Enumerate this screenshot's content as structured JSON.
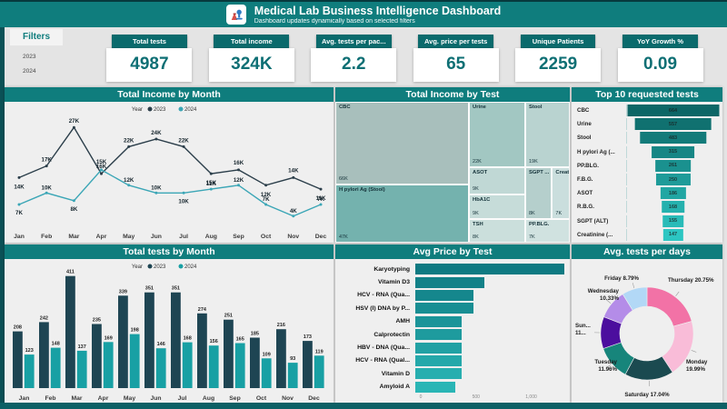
{
  "header": {
    "title": "Medical Lab Business Intelligence Dashboard",
    "subtitle": "Dashboard updates dynamically based on selected filters"
  },
  "filters": {
    "title": "Filters",
    "options": [
      "2023",
      "2024"
    ]
  },
  "kpis": [
    {
      "label": "Total tests",
      "value": "4987"
    },
    {
      "label": "Total income",
      "value": "324K"
    },
    {
      "label": "Avg. tests per pac...",
      "value": "2.2"
    },
    {
      "label": "Avg. price per tests",
      "value": "65"
    },
    {
      "label": "Unique Patients",
      "value": "2259"
    },
    {
      "label": "YoY Growth %",
      "value": "0.09"
    }
  ],
  "colors": {
    "teal_header": "#0F7D7D",
    "teal_dark": "#0A6A6C",
    "edge_dark": "#0B5156",
    "footer": "#0C6065",
    "kpi_value": "#0E6F74",
    "funnel_from": "#0C6666",
    "funnel_to": "#2CC6C2",
    "hbar_from": "#0F7A82",
    "hbar_to": "#2AB5B5"
  },
  "chart_data": [
    {
      "id": "income_by_month",
      "type": "line",
      "title": "Total Income by Month",
      "legend_label": "Year",
      "categories": [
        "Jan",
        "Feb",
        "Mar",
        "Apr",
        "May",
        "Jun",
        "Jul",
        "Aug",
        "Sep",
        "Oct",
        "Nov",
        "Dec"
      ],
      "unit": "K",
      "series": [
        {
          "name": "2023",
          "color": "#2B3E4A",
          "values": [
            14,
            17,
            27,
            15,
            22,
            24,
            22,
            15,
            16,
            12,
            14,
            11
          ]
        },
        {
          "name": "2024",
          "color": "#3BA6B6",
          "values": [
            7,
            10,
            8,
            16,
            12,
            10,
            10,
            11,
            12,
            7,
            4,
            7
          ]
        }
      ],
      "ylim": [
        3,
        28
      ]
    },
    {
      "id": "income_by_test",
      "type": "heatmap",
      "title": "Total Income by Test",
      "items": [
        {
          "name": "CBC",
          "value": "66K",
          "color": "#A8BFBC"
        },
        {
          "name": "H pylori Ag (Stool)",
          "value": "47K",
          "color": "#74B2AE"
        },
        {
          "name": "Urine",
          "value": "22K",
          "color": "#A2C7C2"
        },
        {
          "name": "Stool",
          "value": "19K",
          "color": "#B9D3D0"
        },
        {
          "name": "ASOT",
          "value": "9K",
          "color": "#C0D8D5"
        },
        {
          "name": "HbA1C",
          "value": "9K",
          "color": "#C6DCD9"
        },
        {
          "name": "TSH",
          "value": "8K",
          "color": "#CBDFDC"
        },
        {
          "name": "SGPT ...",
          "value": "8K",
          "color": "#B5CFCC"
        },
        {
          "name": "Creati...",
          "value": "7K",
          "color": "#CADEDD"
        },
        {
          "name": "PP.BLG.",
          "value": "7K",
          "color": "#D0E2E0"
        }
      ]
    },
    {
      "id": "top_requested_tests",
      "type": "bar",
      "title": "Top 10 requested tests",
      "categories": [
        "CBC",
        "Urine",
        "Stool",
        "H pylori Ag (...",
        "PP.BLG.",
        "F.B.G.",
        "ASOT",
        "R.B.G.",
        "SGPT (ALT)",
        "Creatinine (..."
      ],
      "values": [
        664,
        557,
        483,
        315,
        261,
        250,
        186,
        168,
        155,
        147
      ]
    },
    {
      "id": "tests_by_month",
      "type": "bar",
      "title": "Total tests by Month",
      "legend_label": "Year",
      "categories": [
        "Jan",
        "Feb",
        "Mar",
        "Apr",
        "May",
        "Jun",
        "Jul",
        "Aug",
        "Sep",
        "Oct",
        "Nov",
        "Dec"
      ],
      "series": [
        {
          "name": "2023",
          "color": "#1E4553",
          "values": [
            208,
            242,
            411,
            235,
            339,
            351,
            351,
            274,
            251,
            185,
            216,
            173
          ]
        },
        {
          "name": "2024",
          "color": "#18A0A4",
          "values": [
            123,
            148,
            137,
            169,
            198,
            146,
            168,
            156,
            165,
            109,
            93,
            119
          ]
        }
      ]
    },
    {
      "id": "avg_price_by_test",
      "type": "bar",
      "title": "Avg Price by Test",
      "categories": [
        "Karyotyping",
        "Vitamin D3",
        "HCV - RNA (Qua...",
        "HSV (I) DNA by P...",
        "AMH",
        "Calprotectin",
        "HBV - DNA (Qua...",
        "HCV - RNA (Qual...",
        "Vitamin D",
        "Amyloid A"
      ],
      "values": [
        1300,
        600,
        510,
        505,
        400,
        400,
        400,
        400,
        400,
        350
      ],
      "x_ticks": [
        "0",
        "500",
        "1,000"
      ],
      "xlim": [
        0,
        1300
      ]
    },
    {
      "id": "avg_tests_per_days",
      "type": "pie",
      "title": "Avg. tests per days",
      "slices": [
        {
          "label": "Thursday",
          "pct": 20.75,
          "display": "Thursday 20.75%",
          "color": "#F272A6"
        },
        {
          "label": "Monday",
          "pct": 19.99,
          "display": "Monday\n19.99%",
          "color": "#F9BCD8"
        },
        {
          "label": "Saturday",
          "pct": 17.04,
          "display": "Saturday 17.04%",
          "color": "#1B4A50"
        },
        {
          "label": "Tuesday",
          "pct": 11.96,
          "display": "Tuesday\n11.96%",
          "color": "#17857B"
        },
        {
          "label": "Sunday",
          "pct": 11.14,
          "display": "Sun...\n11...",
          "color": "#4C0E9E"
        },
        {
          "label": "Wednesday",
          "pct": 10.33,
          "display": "Wednesday\n10.33%",
          "color": "#B48CE8"
        },
        {
          "label": "Friday",
          "pct": 8.79,
          "display": "Friday 8.79%",
          "color": "#B2D8F6"
        }
      ]
    }
  ]
}
